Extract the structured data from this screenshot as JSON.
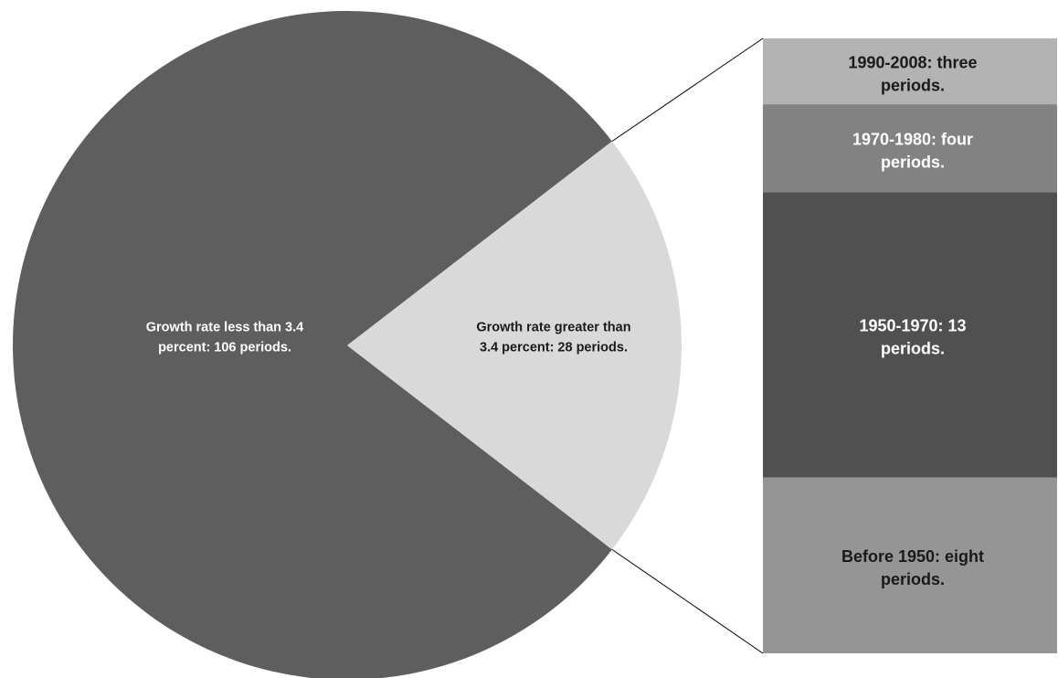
{
  "chart_data": {
    "type": "pie",
    "subtype": "bar-of-pie",
    "title": "",
    "slices": [
      {
        "label_lines": [
          "Growth rate less than 3.4",
          "percent: 106 periods."
        ],
        "value": 106,
        "color": "#5e5e5e",
        "text_color": "#ffffff"
      },
      {
        "label_lines": [
          "Growth rate greater than",
          "3.4 percent: 28 periods."
        ],
        "value": 28,
        "color": "#d9d9d9",
        "text_color": "#1a1a1a"
      }
    ],
    "breakdown": {
      "parent_slice": 1,
      "segments": [
        {
          "label_lines": [
            "1990-2008: three",
            "periods."
          ],
          "value": 3,
          "color": "#b3b3b3",
          "text_color": "#1a1a1a"
        },
        {
          "label_lines": [
            "1970-1980: four",
            "periods."
          ],
          "value": 4,
          "color": "#828282",
          "text_color": "#ffffff"
        },
        {
          "label_lines": [
            "1950-1970: 13",
            "periods."
          ],
          "value": 13,
          "color": "#505050",
          "text_color": "#ffffff"
        },
        {
          "label_lines": [
            "Before 1950: eight",
            "periods."
          ],
          "value": 8,
          "color": "#959595",
          "text_color": "#1a1a1a"
        }
      ]
    },
    "legend": "none",
    "grid": false
  }
}
